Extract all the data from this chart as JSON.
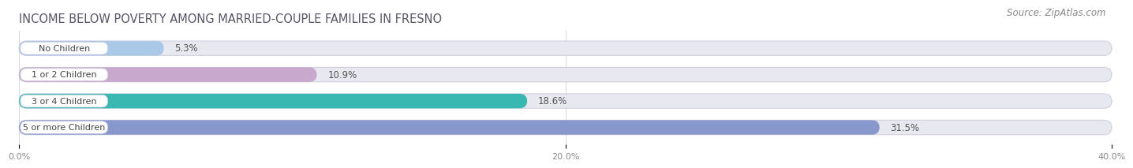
{
  "title": "INCOME BELOW POVERTY AMONG MARRIED-COUPLE FAMILIES IN FRESNO",
  "source": "Source: ZipAtlas.com",
  "categories": [
    "No Children",
    "1 or 2 Children",
    "3 or 4 Children",
    "5 or more Children"
  ],
  "values": [
    5.3,
    10.9,
    18.6,
    31.5
  ],
  "bar_colors": [
    "#aac8e8",
    "#c8a8cc",
    "#38b8b0",
    "#8898cc"
  ],
  "bar_bg_color": "#e8e8f0",
  "bg_color": "#ffffff",
  "xlim": [
    0,
    40
  ],
  "xticks": [
    0,
    20,
    40
  ],
  "xtick_labels": [
    "0.0%",
    "20.0%",
    "40.0%"
  ],
  "title_fontsize": 10.5,
  "source_fontsize": 8.5,
  "label_fontsize": 8,
  "value_fontsize": 8.5,
  "bar_height": 0.55
}
